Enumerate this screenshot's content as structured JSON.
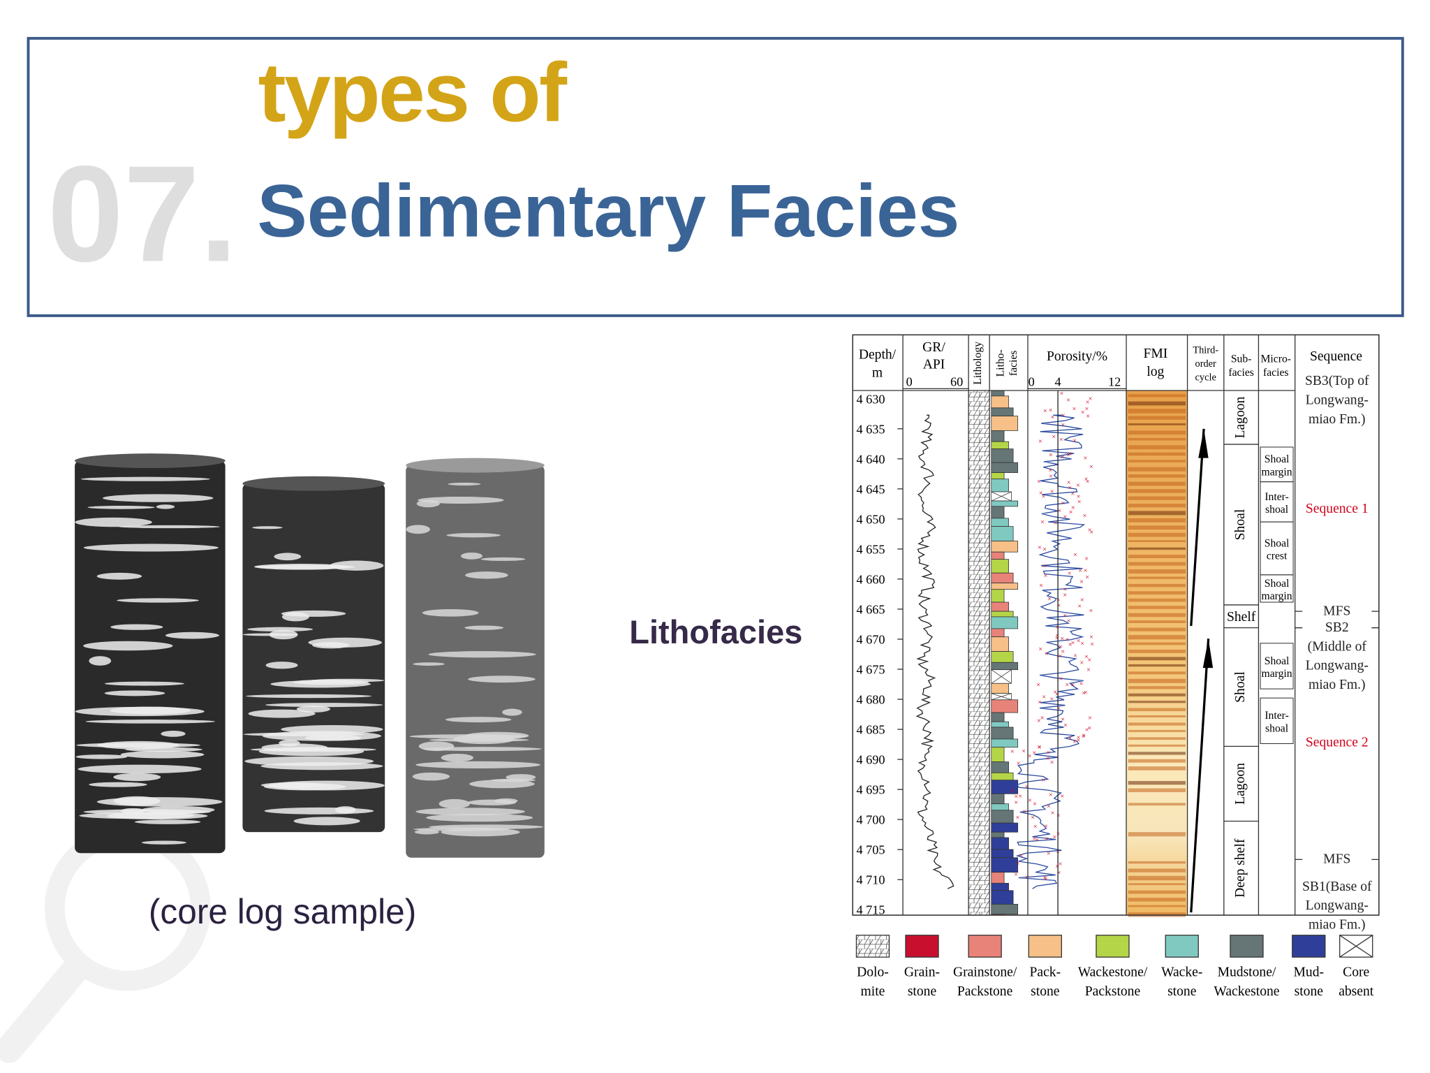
{
  "header": {
    "number": "07.",
    "title_line1": "types of",
    "title_line2": "Sedimentary Facies"
  },
  "label": "Lithofacies",
  "caption": "(core log sample)",
  "log": {
    "headers": [
      {
        "lines": [
          "Depth/",
          "m"
        ]
      },
      {
        "lines": [
          "GR/",
          "API"
        ]
      },
      {
        "lines": [
          "Lithology"
        ]
      },
      {
        "lines": [
          "Litho-",
          "facies"
        ]
      },
      {
        "lines": [
          "Porosity/%"
        ]
      },
      {
        "lines": [
          "FMI",
          "log"
        ]
      },
      {
        "lines": [
          "Third-",
          "order",
          "cycle"
        ]
      },
      {
        "lines": [
          "Sub-",
          "facies"
        ]
      },
      {
        "lines": [
          "Micro-",
          "facies"
        ]
      },
      {
        "lines": [
          "Sequence"
        ]
      }
    ],
    "gr_scale": [
      "0",
      "60"
    ],
    "porosity_scale": [
      "0",
      "4",
      "12"
    ],
    "depths": [
      "4 630",
      "4 635",
      "4 640",
      "4 645",
      "4 650",
      "4 655",
      "4 660",
      "4 665",
      "4 670",
      "4 675",
      "4 680",
      "4 685",
      "4 690",
      "4 695",
      "4 700",
      "4 705",
      "4 710",
      "4 715"
    ],
    "subfacies": [
      "Lagoon",
      "Shoal",
      "Shelf",
      "Shoal",
      "Lagoon",
      "Deep shelf"
    ],
    "microfacies": [
      {
        "lines": [
          "Shoal",
          "margin"
        ]
      },
      {
        "lines": [
          "Inter-",
          "shoal"
        ]
      },
      {
        "lines": [
          "Shoal",
          "crest"
        ]
      },
      {
        "lines": [
          "Shoal",
          "margin"
        ]
      },
      {
        "lines": [
          "Shoal",
          "margin"
        ]
      },
      {
        "lines": [
          "Inter-",
          "shoal"
        ]
      }
    ],
    "sequence": [
      {
        "lines": [
          "SB3(Top of",
          "Longwang-",
          "miao Fm.)"
        ]
      },
      {
        "lines": [
          "Sequence 1"
        ],
        "color": "#d0021b"
      },
      {
        "lines": [
          "MFS"
        ]
      },
      {
        "lines": [
          "SB2",
          "(Middle of",
          "Longwang-",
          "miao Fm.)"
        ]
      },
      {
        "lines": [
          "Sequence 2"
        ],
        "color": "#d0021b"
      },
      {
        "lines": [
          "MFS"
        ]
      },
      {
        "lines": [
          "SB1(Base of",
          "Longwang-",
          "miao Fm.)"
        ]
      }
    ],
    "legend": [
      {
        "lines": [
          "Dolo-",
          "mite"
        ],
        "color": "#ffffff"
      },
      {
        "lines": [
          "Grain-",
          "stone"
        ],
        "color": "#c8102e"
      },
      {
        "lines": [
          "Grainstone/",
          "Packstone"
        ],
        "color": "#e8837a"
      },
      {
        "lines": [
          "Pack-",
          "stone"
        ],
        "color": "#f6c088"
      },
      {
        "lines": [
          "Wackestone/",
          "Packstone"
        ],
        "color": "#b5d548"
      },
      {
        "lines": [
          "Wacke-",
          "stone"
        ],
        "color": "#80c9c1"
      },
      {
        "lines": [
          "Mudstone/",
          "Wackestone"
        ],
        "color": "#667676"
      },
      {
        "lines": [
          "Mud-",
          "stone"
        ],
        "color": "#2f3f99"
      },
      {
        "lines": [
          "Core",
          "absent"
        ],
        "color": "#ffffff"
      }
    ]
  }
}
